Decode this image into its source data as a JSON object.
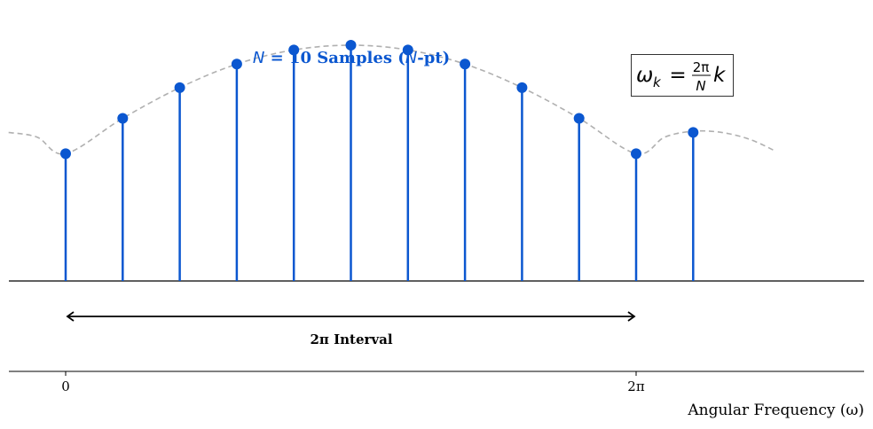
{
  "chart_data": {
    "type": "stem",
    "title": "N = 10 Samples (N-pt)",
    "title_parts": {
      "var": "N",
      "rest": " = 10 Samples (",
      "var2": "N",
      "tail": "-pt)"
    },
    "formula": {
      "lhs": "ω",
      "sub": "k",
      "eq": "=",
      "num": "2π",
      "den": "N",
      "k": "k"
    },
    "xlabel": "Angular Frequency (ω)",
    "xticks": [
      {
        "value_pi": 0,
        "label": "0"
      },
      {
        "value_pi": 2,
        "label": "2π"
      }
    ],
    "xlim_pi": [
      -0.2,
      2.8
    ],
    "interval_label": "2π Interval",
    "interval_pi": [
      0,
      2
    ],
    "colors": {
      "stem": "#0b57d0",
      "curve": "#b0b0b0",
      "axis": "#000000"
    },
    "samples": {
      "x_pi": [
        0,
        0.2,
        0.4,
        0.6,
        0.8,
        1.0,
        1.2,
        1.4,
        1.6,
        1.8,
        2.0,
        2.2
      ],
      "values": [
        0.54,
        0.69,
        0.82,
        0.92,
        0.98,
        1.0,
        0.98,
        0.92,
        0.82,
        0.69,
        0.54,
        0.63
      ]
    },
    "envelope": {
      "x_pi": [
        -0.2,
        -0.1,
        0,
        0.2,
        0.4,
        0.6,
        0.8,
        1.0,
        1.2,
        1.4,
        1.6,
        1.8,
        2.0,
        2.1,
        2.2,
        2.3,
        2.4,
        2.49
      ],
      "values": [
        0.63,
        0.61,
        0.54,
        0.69,
        0.82,
        0.92,
        0.98,
        1.0,
        0.98,
        0.92,
        0.82,
        0.69,
        0.54,
        0.61,
        0.635,
        0.63,
        0.6,
        0.55
      ]
    },
    "grid": false
  }
}
